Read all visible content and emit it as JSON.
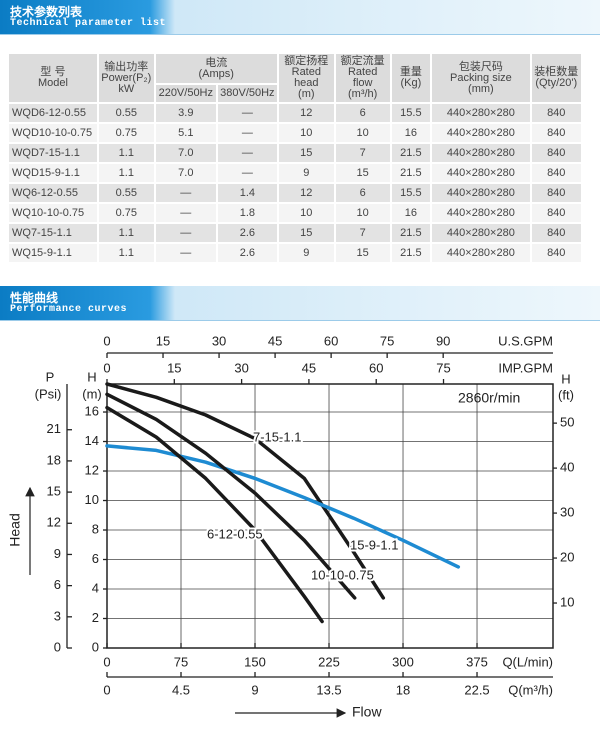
{
  "sections": [
    {
      "title": "技术参数列表",
      "subtitle": "Technical parameter list"
    },
    {
      "title": "性能曲线",
      "subtitle": "Performance curves"
    }
  ],
  "table": {
    "header": [
      [
        "型 号",
        "Model"
      ],
      [
        "输出功率",
        "Power(P₂)",
        "kW"
      ],
      [
        "电流",
        "(Amps)"
      ],
      [
        "额定扬程",
        "Rated head",
        "(m)"
      ],
      [
        "额定流量",
        "Rated flow",
        "(m³/h)"
      ],
      [
        "重量",
        "(Kg)"
      ],
      [
        "包装尺码",
        "Packing size",
        "(mm)"
      ],
      [
        "装柜数量",
        "(Qty/20')"
      ]
    ],
    "subheader": [
      "220V/50Hz",
      "380V/50Hz"
    ],
    "rows": [
      [
        "WQD6-12-0.55",
        "0.55",
        "3.9",
        "—",
        "12",
        "6",
        "15.5",
        "440×280×280",
        "840"
      ],
      [
        "WQD10-10-0.75",
        "0.75",
        "5.1",
        "—",
        "10",
        "10",
        "16",
        "440×280×280",
        "840"
      ],
      [
        "WQD7-15-1.1",
        "1.1",
        "7.0",
        "—",
        "15",
        "7",
        "21.5",
        "440×280×280",
        "840"
      ],
      [
        "WQD15-9-1.1",
        "1.1",
        "7.0",
        "—",
        "9",
        "15",
        "21.5",
        "440×280×280",
        "840"
      ],
      [
        "WQ6-12-0.55",
        "0.55",
        "—",
        "1.4",
        "12",
        "6",
        "15.5",
        "440×280×280",
        "840"
      ],
      [
        "WQ10-10-0.75",
        "0.75",
        "—",
        "1.8",
        "10",
        "10",
        "16",
        "440×280×280",
        "840"
      ],
      [
        "WQ7-15-1.1",
        "1.1",
        "—",
        "2.6",
        "15",
        "7",
        "21.5",
        "440×280×280",
        "840"
      ],
      [
        "WQ15-9-1.1",
        "1.1",
        "—",
        "2.6",
        "9",
        "15",
        "21.5",
        "440×280×280",
        "840"
      ]
    ]
  },
  "chart_data": {
    "type": "line",
    "speed": "2860r/min",
    "y_title": "Head",
    "x_title": "Flow",
    "grid": true,
    "xlabel": "Q(L/min)",
    "xlim": [
      0,
      452
    ],
    "xticks": [
      0,
      75,
      150,
      225,
      300,
      375
    ],
    "ylabel": "H",
    "yunit": "(m)",
    "ylim": [
      0,
      17.9
    ],
    "yticks": [
      0,
      2,
      4,
      6,
      8,
      10,
      12,
      14,
      16
    ],
    "y2label": "H",
    "y2unit": "(ft)",
    "y2lim": [
      0,
      58.7
    ],
    "y2ticks": [
      10,
      20,
      30,
      40,
      50
    ],
    "p_axis": {
      "label": "P",
      "unit": "(Psi)",
      "lim": [
        0,
        25.4
      ],
      "ticks": [
        0,
        3,
        6,
        9,
        12,
        15,
        18,
        21
      ]
    },
    "top_axes": [
      {
        "label": "U.S.GPM",
        "lim": [
          0,
          119.4
        ],
        "ticks": [
          0,
          15,
          30,
          45,
          60,
          75,
          90
        ]
      },
      {
        "label": "IMP.GPM",
        "lim": [
          0,
          99.4
        ],
        "ticks": [
          0,
          15,
          30,
          45,
          60,
          75
        ]
      }
    ],
    "bottom_axis2": {
      "label": "Q(m³/h)",
      "lim": [
        0,
        27.12
      ],
      "ticks": [
        0,
        4.5,
        9,
        13.5,
        18,
        22.5
      ]
    },
    "series": [
      {
        "name": "7-15-1.1",
        "color": "#1a1a1a",
        "x": [
          0,
          50,
          100,
          150,
          200,
          250,
          280
        ],
        "values": [
          17.9,
          17.0,
          15.8,
          14.2,
          11.5,
          6.5,
          3.4
        ]
      },
      {
        "name": "15-9-1.1",
        "color": "#1e8bd2",
        "x": [
          0,
          50,
          100,
          150,
          200,
          250,
          300,
          356
        ],
        "values": [
          13.7,
          13.4,
          12.6,
          11.5,
          10.2,
          8.8,
          7.3,
          5.5
        ]
      },
      {
        "name": "10-10-0.75",
        "color": "#1a1a1a",
        "x": [
          0,
          50,
          100,
          150,
          200,
          251
        ],
        "values": [
          17.2,
          15.5,
          13.2,
          10.5,
          7.3,
          3.4
        ]
      },
      {
        "name": "6-12-0.55",
        "color": "#1a1a1a",
        "x": [
          0,
          50,
          100,
          150,
          200,
          218
        ],
        "values": [
          16.3,
          14.3,
          11.5,
          8.0,
          3.5,
          1.8
        ]
      }
    ]
  }
}
